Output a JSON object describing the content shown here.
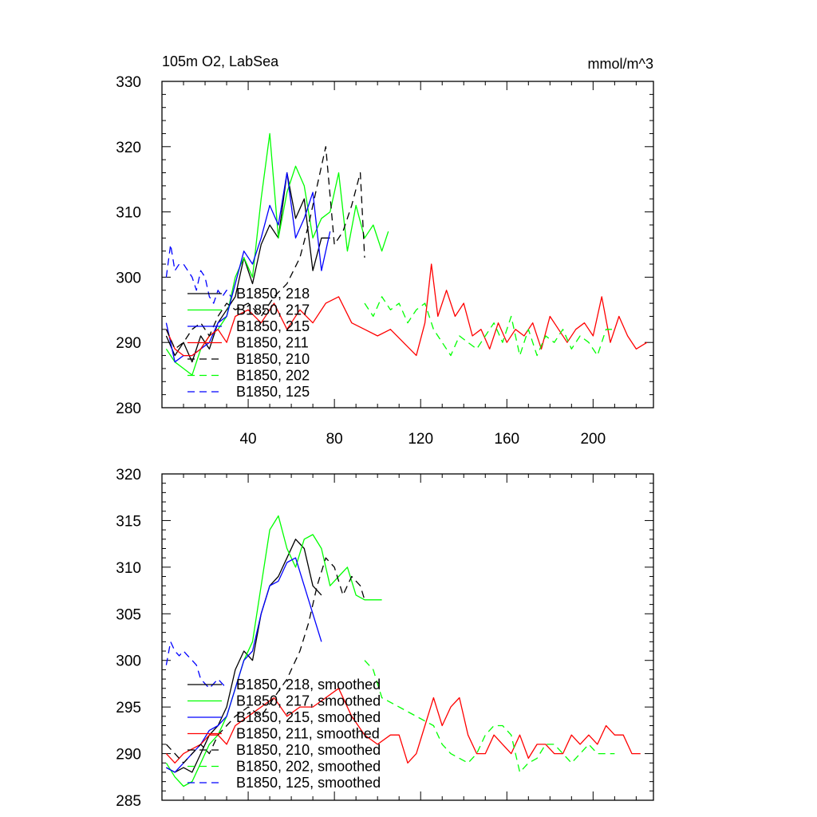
{
  "chart_data": [
    {
      "type": "line",
      "title": "105m O2, LabSea",
      "units": "mmol/m^3",
      "xlim": [
        0,
        228
      ],
      "ylim": [
        280,
        330
      ],
      "xticks": [
        "40",
        "80",
        "120",
        "160",
        "200"
      ],
      "yticks": [
        "280",
        "290",
        "300",
        "310",
        "320",
        "330"
      ],
      "legend_position": "lower-left",
      "series": [
        {
          "name": "B1850, 218",
          "color": "#000000",
          "dash": "solid",
          "x": [
            2,
            6,
            10,
            14,
            18,
            22,
            26,
            30,
            34,
            38,
            42,
            46,
            50,
            54,
            58,
            62,
            66,
            70,
            74,
            78
          ],
          "y": [
            291,
            288,
            290,
            287,
            291,
            289,
            293,
            295,
            297,
            303,
            299,
            305,
            308,
            306,
            316,
            309,
            312,
            301,
            306,
            306
          ]
        },
        {
          "name": "B1850, 217",
          "color": "#00ff00",
          "dash": "solid",
          "x": [
            2,
            6,
            10,
            14,
            18,
            22,
            26,
            30,
            34,
            38,
            42,
            46,
            50,
            54,
            58,
            62,
            66,
            70,
            74,
            78,
            82,
            86,
            90,
            94,
            98,
            102,
            105
          ],
          "y": [
            289,
            287,
            286,
            285,
            289,
            291,
            292,
            294,
            300,
            303,
            300,
            312,
            322,
            306,
            313,
            317,
            314,
            306,
            309,
            310,
            316,
            304,
            311,
            306,
            308,
            304,
            307
          ]
        },
        {
          "name": "B1850, 215",
          "color": "#0000ff",
          "dash": "solid",
          "x": [
            2,
            6,
            10,
            14,
            18,
            22,
            26,
            30,
            34,
            38,
            42,
            46,
            50,
            54,
            58,
            62,
            66,
            70,
            74,
            78
          ],
          "y": [
            293,
            287,
            288,
            288,
            289,
            290,
            293,
            294,
            299,
            304,
            302,
            306,
            311,
            308,
            316,
            306,
            309,
            313,
            301,
            307
          ]
        },
        {
          "name": "B1850, 211",
          "color": "#ff0000",
          "dash": "solid",
          "x": [
            2,
            6,
            10,
            14,
            18,
            22,
            26,
            30,
            34,
            40,
            46,
            52,
            58,
            64,
            70,
            76,
            82,
            88,
            94,
            100,
            106,
            112,
            118,
            122,
            125,
            128,
            132,
            136,
            140,
            144,
            148,
            152,
            156,
            160,
            164,
            168,
            172,
            176,
            180,
            184,
            188,
            192,
            196,
            200,
            204,
            208,
            212,
            216,
            220,
            225
          ],
          "y": [
            292,
            289,
            288,
            288,
            289,
            291,
            292,
            290,
            294,
            295,
            293,
            296,
            292,
            295,
            293,
            296,
            297,
            293,
            292,
            291,
            292,
            290,
            288,
            293,
            302,
            294,
            298,
            294,
            296,
            291,
            292,
            289,
            293,
            290,
            292,
            291,
            293,
            289,
            294,
            292,
            290,
            292,
            293,
            291,
            297,
            290,
            294,
            291,
            289,
            290
          ]
        },
        {
          "name": "B1850, 210",
          "color": "#000000",
          "dash": "dash",
          "x": [
            2,
            6,
            10,
            14,
            18,
            22,
            26,
            30,
            34,
            40,
            46,
            52,
            58,
            64,
            68,
            72,
            76,
            80,
            84,
            88,
            92,
            94
          ],
          "y": [
            292,
            289,
            290,
            292,
            293,
            291,
            294,
            296,
            295,
            296,
            294,
            297,
            299,
            303,
            308,
            314,
            320,
            305,
            307,
            311,
            316,
            303
          ]
        },
        {
          "name": "B1850, 202",
          "color": "#00ff00",
          "dash": "dash",
          "x": [
            94,
            98,
            102,
            106,
            110,
            114,
            118,
            122,
            126,
            130,
            134,
            138,
            142,
            146,
            150,
            154,
            158,
            162,
            166,
            170,
            174,
            178,
            182,
            186,
            190,
            194,
            198,
            202,
            206,
            210
          ],
          "y": [
            296,
            294,
            297,
            295,
            296,
            293,
            295,
            296,
            292,
            290,
            288,
            291,
            290,
            289,
            291,
            293,
            290,
            294,
            288,
            292,
            288,
            291,
            290,
            292,
            289,
            291,
            290,
            288,
            292,
            292
          ]
        },
        {
          "name": "B1850, 125",
          "color": "#0000ff",
          "dash": "dash",
          "x": [
            2,
            4,
            6,
            8,
            10,
            12,
            14,
            16,
            18,
            20,
            22,
            24,
            26,
            28,
            30,
            32
          ],
          "y": [
            300,
            305,
            301,
            302,
            302,
            301,
            300,
            298,
            301,
            300,
            297,
            296,
            298,
            297,
            298,
            297
          ]
        }
      ]
    },
    {
      "type": "line",
      "xlim": [
        0,
        228
      ],
      "ylim": [
        285,
        320
      ],
      "yticks": [
        "285",
        "290",
        "295",
        "300",
        "305",
        "310",
        "315",
        "320"
      ],
      "legend_position": "lower-left",
      "series": [
        {
          "name": "B1850, 218, smoothed",
          "color": "#000000",
          "dash": "solid",
          "x": [
            2,
            6,
            10,
            14,
            18,
            22,
            26,
            30,
            34,
            38,
            42,
            46,
            50,
            54,
            58,
            62,
            66,
            70,
            74
          ],
          "y": [
            288.5,
            288,
            288.5,
            288,
            290,
            292,
            293,
            295,
            299,
            301,
            300,
            305,
            308,
            309,
            311,
            313,
            312,
            308,
            307
          ]
        },
        {
          "name": "B1850, 217, smoothed",
          "color": "#00ff00",
          "dash": "solid",
          "x": [
            2,
            6,
            10,
            14,
            18,
            22,
            26,
            30,
            34,
            38,
            42,
            46,
            50,
            54,
            58,
            62,
            66,
            70,
            74,
            78,
            82,
            86,
            90,
            94,
            98,
            102
          ],
          "y": [
            289,
            287.5,
            286.5,
            287,
            289,
            291,
            292,
            294,
            297,
            300,
            302,
            308,
            314,
            315.5,
            312,
            310,
            313,
            313.5,
            312,
            308,
            309,
            310,
            307,
            306.5,
            306.5,
            306.5
          ]
        },
        {
          "name": "B1850, 215, smoothed",
          "color": "#0000ff",
          "dash": "solid",
          "x": [
            2,
            6,
            10,
            14,
            18,
            22,
            26,
            30,
            34,
            38,
            42,
            46,
            50,
            54,
            58,
            62,
            66,
            70,
            74
          ],
          "y": [
            288.5,
            288,
            289,
            290,
            291,
            292.5,
            293,
            294,
            297,
            300,
            301,
            305,
            308,
            308.5,
            310.5,
            311,
            308,
            305,
            302
          ]
        },
        {
          "name": "B1850, 211, smoothed",
          "color": "#ff0000",
          "dash": "solid",
          "x": [
            2,
            6,
            10,
            14,
            18,
            22,
            26,
            30,
            34,
            40,
            46,
            52,
            58,
            64,
            70,
            76,
            82,
            88,
            94,
            100,
            106,
            110,
            114,
            118,
            122,
            126,
            130,
            134,
            138,
            142,
            146,
            150,
            154,
            158,
            162,
            166,
            170,
            174,
            178,
            182,
            186,
            190,
            194,
            198,
            202,
            206,
            210,
            214,
            218,
            222
          ],
          "y": [
            290,
            289,
            290,
            290.5,
            291,
            292,
            292,
            291,
            293,
            294,
            295,
            296,
            294,
            295,
            295,
            296,
            297,
            294,
            292,
            291,
            292,
            292,
            289,
            290,
            293,
            296,
            293,
            295,
            296,
            292,
            290,
            290,
            292,
            291,
            290,
            292,
            289.5,
            291,
            291,
            290,
            290,
            292,
            291,
            292,
            291,
            293,
            292,
            292,
            290,
            290
          ]
        },
        {
          "name": "B1850, 210, smoothed",
          "color": "#000000",
          "dash": "dash",
          "x": [
            2,
            6,
            10,
            14,
            18,
            22,
            26,
            30,
            34,
            40,
            46,
            52,
            58,
            64,
            68,
            72,
            76,
            80,
            84,
            88,
            92,
            94
          ],
          "y": [
            291,
            290,
            289,
            290,
            291,
            290,
            292,
            293,
            294,
            295,
            294,
            296,
            298,
            301,
            304,
            308,
            311,
            310,
            307,
            309,
            308,
            306.5
          ]
        },
        {
          "name": "B1850, 202, smoothed",
          "color": "#00ff00",
          "dash": "dash",
          "x": [
            94,
            98,
            102,
            106,
            110,
            114,
            118,
            122,
            126,
            130,
            134,
            138,
            142,
            146,
            150,
            154,
            158,
            162,
            166,
            170,
            174,
            178,
            182,
            186,
            190,
            194,
            198,
            202,
            206,
            210
          ],
          "y": [
            300,
            299,
            296,
            295.5,
            295,
            294.5,
            294,
            293.5,
            293,
            291,
            290,
            289.5,
            289,
            290,
            292,
            293,
            293,
            292,
            288,
            289,
            289.5,
            291,
            291,
            290,
            289,
            290,
            291,
            290,
            290,
            290
          ]
        },
        {
          "name": "B1850, 125, smoothed",
          "color": "#0000ff",
          "dash": "dash",
          "x": [
            2,
            4,
            6,
            8,
            10,
            12,
            14,
            16,
            18,
            20,
            22,
            24,
            26,
            28,
            30
          ],
          "y": [
            299.5,
            302,
            301,
            300.5,
            301,
            300.5,
            300,
            299.5,
            298,
            297.5,
            297,
            297.5,
            298,
            297.5,
            297
          ]
        }
      ]
    }
  ]
}
